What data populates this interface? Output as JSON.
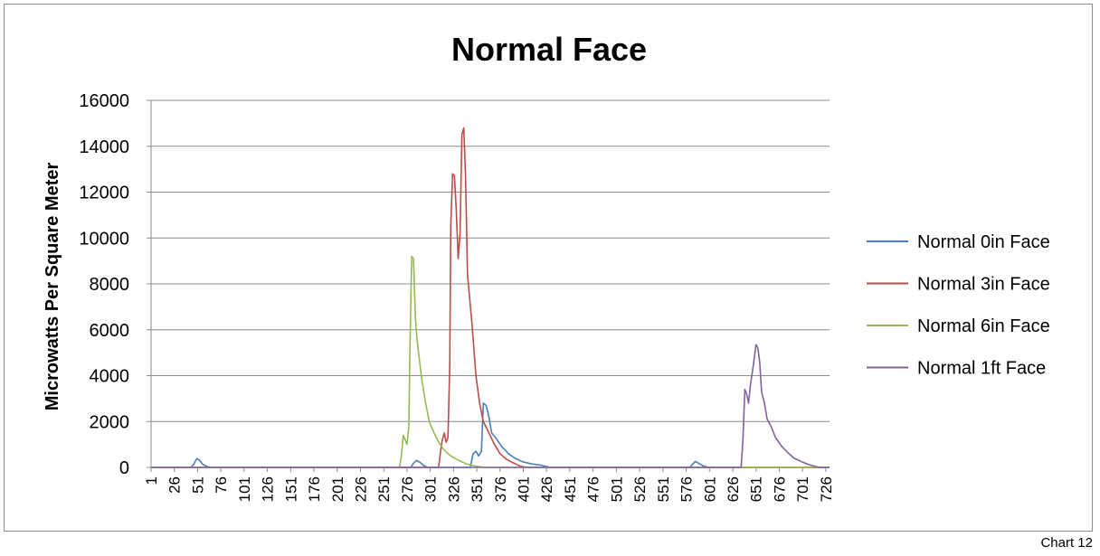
{
  "chart_data": {
    "type": "line",
    "title": "Normal Face",
    "xlabel": "",
    "ylabel": "Microwatts Per Square Meter",
    "ylim": [
      0,
      16000
    ],
    "yticks": [
      0,
      2000,
      4000,
      6000,
      8000,
      10000,
      12000,
      14000,
      16000
    ],
    "xlim": [
      1,
      730
    ],
    "xtick_labels": [
      "1",
      "26",
      "51",
      "76",
      "101",
      "126",
      "151",
      "176",
      "201",
      "226",
      "251",
      "276",
      "301",
      "326",
      "351",
      "376",
      "401",
      "426",
      "451",
      "476",
      "501",
      "526",
      "551",
      "576",
      "601",
      "626",
      "651",
      "676",
      "701",
      "726"
    ],
    "grid": true,
    "legend_position": "right",
    "series": [
      {
        "name": "Normal 0in Face",
        "color": "#4a7ebb",
        "points": [
          [
            1,
            0
          ],
          [
            44,
            0
          ],
          [
            47,
            150
          ],
          [
            50,
            380
          ],
          [
            53,
            320
          ],
          [
            56,
            150
          ],
          [
            60,
            60
          ],
          [
            64,
            0
          ],
          [
            280,
            0
          ],
          [
            283,
            180
          ],
          [
            286,
            300
          ],
          [
            290,
            220
          ],
          [
            294,
            80
          ],
          [
            298,
            0
          ],
          [
            344,
            0
          ],
          [
            347,
            600
          ],
          [
            350,
            700
          ],
          [
            353,
            500
          ],
          [
            356,
            700
          ],
          [
            358,
            2800
          ],
          [
            361,
            2700
          ],
          [
            364,
            2200
          ],
          [
            367,
            1500
          ],
          [
            372,
            1250
          ],
          [
            378,
            900
          ],
          [
            385,
            600
          ],
          [
            392,
            400
          ],
          [
            400,
            250
          ],
          [
            410,
            150
          ],
          [
            420,
            100
          ],
          [
            430,
            0
          ],
          [
            580,
            0
          ],
          [
            583,
            150
          ],
          [
            586,
            260
          ],
          [
            590,
            160
          ],
          [
            595,
            50
          ],
          [
            600,
            0
          ],
          [
            730,
            0
          ]
        ]
      },
      {
        "name": "Normal 3in Face",
        "color": "#be4b48",
        "points": [
          [
            1,
            0
          ],
          [
            310,
            0
          ],
          [
            312,
            700
          ],
          [
            314,
            1200
          ],
          [
            316,
            1500
          ],
          [
            318,
            1100
          ],
          [
            320,
            1300
          ],
          [
            322,
            4500
          ],
          [
            323,
            10500
          ],
          [
            325,
            12800
          ],
          [
            327,
            12700
          ],
          [
            329,
            11200
          ],
          [
            331,
            9100
          ],
          [
            333,
            10200
          ],
          [
            335,
            14500
          ],
          [
            337,
            14800
          ],
          [
            339,
            12600
          ],
          [
            341,
            8400
          ],
          [
            343,
            7500
          ],
          [
            346,
            6200
          ],
          [
            350,
            4000
          ],
          [
            354,
            2800
          ],
          [
            358,
            2000
          ],
          [
            364,
            1500
          ],
          [
            370,
            1000
          ],
          [
            376,
            600
          ],
          [
            383,
            350
          ],
          [
            390,
            200
          ],
          [
            398,
            50
          ],
          [
            405,
            0
          ],
          [
            730,
            0
          ]
        ]
      },
      {
        "name": "Normal 6in Face",
        "color": "#98b954",
        "points": [
          [
            1,
            0
          ],
          [
            268,
            0
          ],
          [
            270,
            500
          ],
          [
            272,
            1400
          ],
          [
            274,
            1200
          ],
          [
            276,
            1000
          ],
          [
            278,
            1800
          ],
          [
            279,
            4800
          ],
          [
            281,
            9200
          ],
          [
            283,
            9100
          ],
          [
            285,
            6500
          ],
          [
            287,
            5500
          ],
          [
            289,
            4800
          ],
          [
            292,
            3800
          ],
          [
            296,
            2800
          ],
          [
            300,
            2000
          ],
          [
            305,
            1500
          ],
          [
            310,
            1100
          ],
          [
            315,
            800
          ],
          [
            320,
            600
          ],
          [
            325,
            450
          ],
          [
            332,
            300
          ],
          [
            340,
            150
          ],
          [
            350,
            50
          ],
          [
            360,
            0
          ],
          [
            730,
            0
          ]
        ]
      },
      {
        "name": "Normal 1ft Face",
        "color": "#7e62a1",
        "points": [
          [
            1,
            0
          ],
          [
            635,
            0
          ],
          [
            637,
            1200
          ],
          [
            639,
            3400
          ],
          [
            641,
            3200
          ],
          [
            643,
            2800
          ],
          [
            645,
            3600
          ],
          [
            648,
            4400
          ],
          [
            651,
            5350
          ],
          [
            653,
            5200
          ],
          [
            655,
            4600
          ],
          [
            657,
            3300
          ],
          [
            660,
            2800
          ],
          [
            663,
            2100
          ],
          [
            667,
            1800
          ],
          [
            672,
            1300
          ],
          [
            678,
            950
          ],
          [
            685,
            650
          ],
          [
            692,
            400
          ],
          [
            700,
            250
          ],
          [
            708,
            120
          ],
          [
            715,
            40
          ],
          [
            720,
            0
          ],
          [
            730,
            0
          ]
        ]
      }
    ]
  },
  "footer_label": "Chart 12"
}
